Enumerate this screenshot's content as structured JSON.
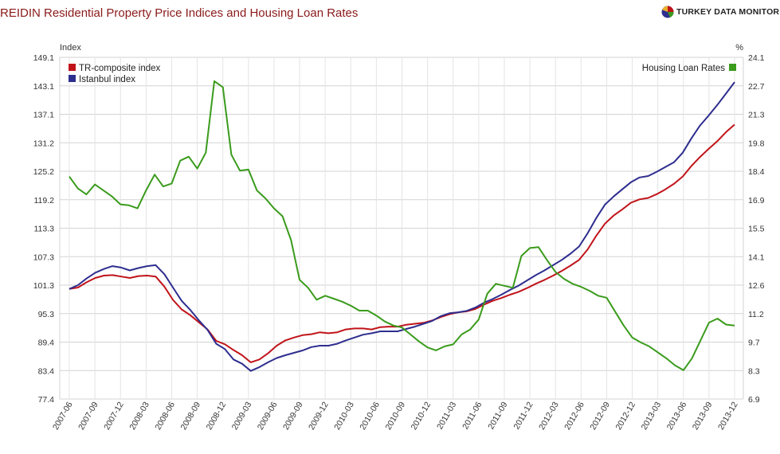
{
  "header": {
    "title": "REIDIN Residential Property Price Indices and Housing Loan Rates",
    "brand": "TURKEY DATA MONITOR",
    "brand_icon": "pie-logo-icon"
  },
  "chart_data": {
    "type": "line",
    "title": "REIDIN Residential Property Price Indices and Housing Loan Rates",
    "ylabel_left": "Index",
    "ylabel_right": "%",
    "ylim_left": [
      77.4,
      149.1
    ],
    "yticks_left": [
      "77.4",
      "83.4",
      "89.4",
      "95.3",
      "101.3",
      "107.3",
      "113.3",
      "119.2",
      "125.2",
      "131.2",
      "137.1",
      "143.1",
      "149.1"
    ],
    "ylim_right": [
      6.9,
      24.1
    ],
    "yticks_right": [
      "6.9",
      "8.3",
      "9.7",
      "11.2",
      "12.6",
      "14.1",
      "15.5",
      "16.9",
      "18.4",
      "19.8",
      "21.3",
      "22.7",
      "24.1"
    ],
    "xticks": [
      "2007-06",
      "2007-09",
      "2007-12",
      "2008-03",
      "2008-06",
      "2008-09",
      "2008-12",
      "2009-03",
      "2009-06",
      "2009-09",
      "2009-12",
      "2010-03",
      "2010-06",
      "2010-09",
      "2010-12",
      "2011-03",
      "2011-06",
      "2011-09",
      "2011-12",
      "2012-03",
      "2012-06",
      "2012-09",
      "2012-12",
      "2013-03",
      "2013-06",
      "2013-09",
      "2013-12"
    ],
    "grid": true,
    "legend_left_position": "top-left",
    "legend_right_position": "top-right",
    "series": [
      {
        "name": "TR-composite index",
        "axis": "left",
        "color": "#c0141a",
        "values": [
          100.5,
          100.8,
          101.9,
          102.8,
          103.3,
          103.4,
          103.1,
          102.8,
          103.2,
          103.3,
          103.1,
          101.0,
          98.2,
          96.2,
          95.0,
          93.5,
          92.0,
          89.6,
          88.9,
          87.7,
          86.6,
          85.1,
          85.7,
          87.0,
          88.6,
          89.7,
          90.3,
          90.8,
          91.0,
          91.4,
          91.2,
          91.4,
          92.0,
          92.2,
          92.2,
          92.0,
          92.5,
          92.6,
          92.6,
          93.0,
          93.2,
          93.4,
          93.9,
          94.6,
          95.2,
          95.6,
          95.8,
          96.3,
          97.2,
          98.0,
          98.6,
          99.3,
          99.9,
          100.7,
          101.6,
          102.4,
          103.3,
          104.3,
          105.4,
          106.6,
          108.8,
          111.7,
          114.2,
          115.9,
          117.2,
          118.6,
          119.3,
          119.6,
          120.4,
          121.4,
          122.6,
          124.1,
          126.3,
          128.2,
          129.9,
          131.5,
          133.4,
          135.0
        ]
      },
      {
        "name": "Istanbul index",
        "axis": "left",
        "color": "#2e2e8f",
        "values": [
          100.5,
          101.3,
          102.7,
          103.9,
          104.7,
          105.3,
          105.0,
          104.4,
          104.9,
          105.3,
          105.5,
          103.6,
          100.8,
          98.0,
          96.1,
          93.9,
          91.9,
          89.0,
          87.9,
          85.7,
          84.8,
          83.3,
          84.1,
          85.1,
          86.0,
          86.6,
          87.1,
          87.6,
          88.3,
          88.6,
          88.6,
          89.0,
          89.7,
          90.3,
          90.9,
          91.2,
          91.6,
          91.6,
          91.6,
          92.1,
          92.6,
          93.2,
          93.8,
          94.8,
          95.4,
          95.6,
          95.9,
          96.6,
          97.6,
          98.4,
          99.3,
          100.3,
          101.2,
          102.3,
          103.4,
          104.4,
          105.5,
          106.6,
          107.9,
          109.4,
          112.2,
          115.4,
          118.2,
          119.9,
          121.4,
          122.9,
          123.9,
          124.2,
          125.1,
          126.1,
          127.1,
          129.1,
          132.1,
          134.8,
          136.9,
          139.1,
          141.5,
          143.9
        ]
      },
      {
        "name": "Housing Loan Rates",
        "axis": "right",
        "color": "#3a9b1c",
        "values": [
          18.1,
          17.5,
          17.2,
          17.7,
          17.4,
          17.1,
          16.7,
          16.65,
          16.5,
          17.4,
          18.2,
          17.6,
          17.75,
          18.9,
          19.1,
          18.5,
          19.3,
          22.9,
          22.6,
          19.2,
          18.4,
          18.45,
          17.4,
          17.0,
          16.5,
          16.1,
          14.9,
          12.9,
          12.5,
          11.9,
          12.1,
          11.95,
          11.8,
          11.6,
          11.35,
          11.35,
          11.1,
          10.8,
          10.6,
          10.5,
          10.15,
          9.8,
          9.5,
          9.35,
          9.55,
          9.65,
          10.15,
          10.4,
          10.9,
          12.2,
          12.7,
          12.6,
          12.5,
          14.1,
          14.5,
          14.55,
          13.9,
          13.3,
          12.95,
          12.7,
          12.55,
          12.35,
          12.1,
          12.0,
          11.3,
          10.6,
          10.0,
          9.75,
          9.55,
          9.25,
          8.95,
          8.6,
          8.35,
          8.95,
          9.85,
          10.75,
          10.95,
          10.65,
          10.6
        ]
      }
    ]
  }
}
